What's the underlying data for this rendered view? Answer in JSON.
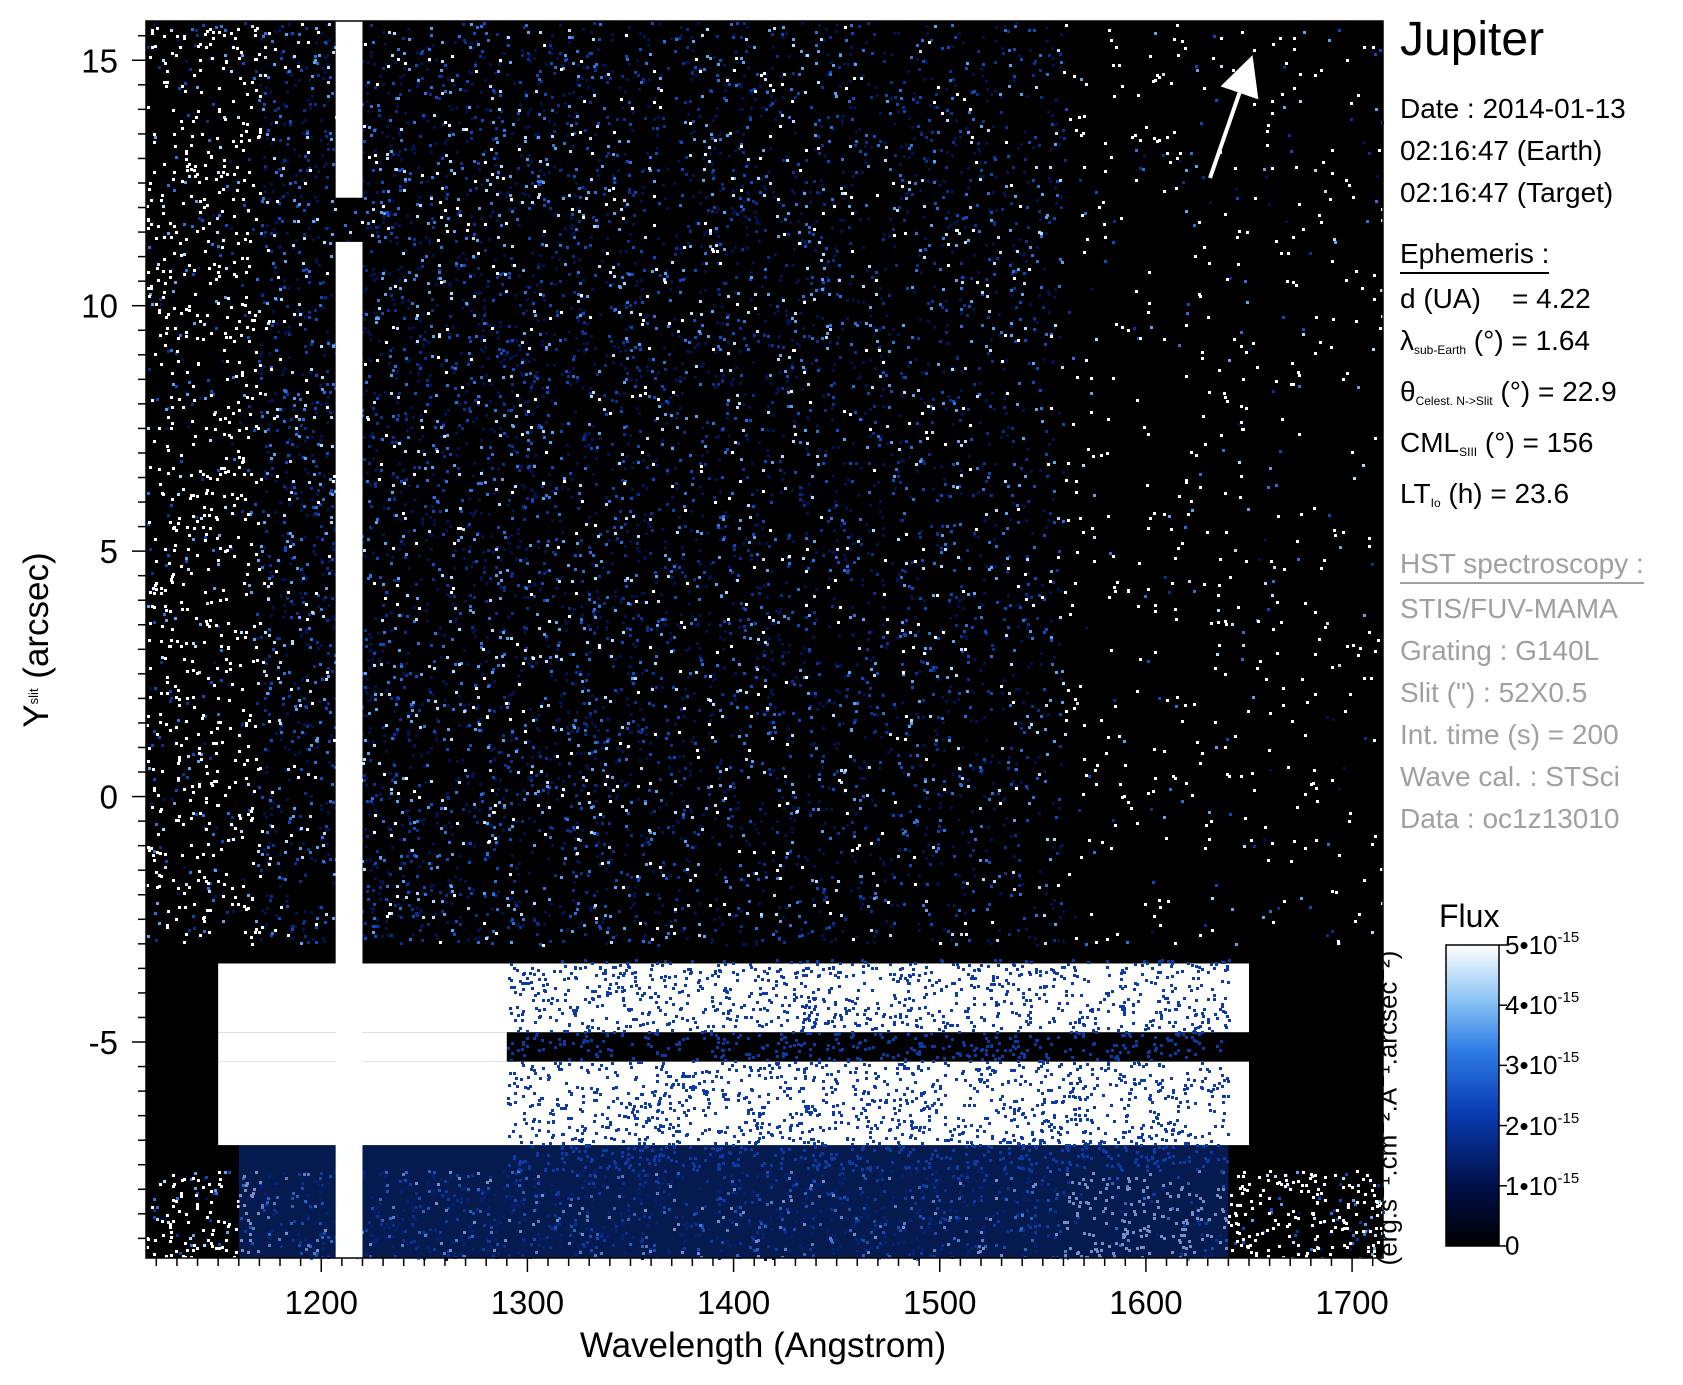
{
  "chart_data": {
    "type": "heatmap",
    "xlabel": "Wavelength (Angstrom)",
    "ylabel_main": "Y",
    "ylabel_sub": "slit",
    "ylabel_rest": " (arcsec)",
    "xlim": [
      1115,
      1715
    ],
    "ylim": [
      -9.4,
      15.8
    ],
    "x_ticks": [
      {
        "value": 1200,
        "label": "1200"
      },
      {
        "value": 1300,
        "label": "1300"
      },
      {
        "value": 1400,
        "label": "1400"
      },
      {
        "value": 1500,
        "label": "1500"
      },
      {
        "value": 1600,
        "label": "1600"
      },
      {
        "value": 1700,
        "label": "1700"
      }
    ],
    "y_ticks": [
      {
        "value": 15,
        "label": "15"
      },
      {
        "value": 10,
        "label": "10"
      },
      {
        "value": 5,
        "label": "5"
      },
      {
        "value": 0,
        "label": "0"
      },
      {
        "value": -5,
        "label": "-5"
      }
    ],
    "features": {
      "lyman_alpha_column_x": [
        1207,
        1220
      ],
      "lyman_alpha_gap_y": [
        11.3,
        12.2
      ],
      "bright_band_upper_y": [
        -4.8,
        -3.4
      ],
      "bright_band_lower_y": [
        -7.1,
        -5.4
      ],
      "bright_band_x": [
        1150,
        1650
      ]
    },
    "colorbar": {
      "title": "Flux",
      "label": "(erg.s⁻¹.cm⁻².A⁻¹.arcsec⁻²)",
      "range": [
        0,
        5e-15
      ],
      "ticks": [
        {
          "value": 5e-15,
          "base": "5•10",
          "exp": "-15"
        },
        {
          "value": 4e-15,
          "base": "4•10",
          "exp": "-15"
        },
        {
          "value": 3e-15,
          "base": "3•10",
          "exp": "-15"
        },
        {
          "value": 2e-15,
          "base": "2•10",
          "exp": "-15"
        },
        {
          "value": 1e-15,
          "base": "1•10",
          "exp": "-15"
        },
        {
          "value": 0,
          "base": "0",
          "exp": ""
        }
      ],
      "colors": [
        "#000000",
        "#00104a",
        "#0a3db5",
        "#2f7ce6",
        "#8ec5f5",
        "#ffffff"
      ]
    },
    "arrow_angle_deg": 22.9,
    "colors": {
      "background": "#000000",
      "saturated": "#ffffff"
    }
  },
  "info": {
    "target": "Jupiter",
    "date": "Date : 2014-01-13",
    "earth_time": "02:16:47 (Earth)",
    "target_time": "02:16:47 (Target)",
    "ephemeris_header": "Ephemeris :",
    "d_label": "d (UA)",
    "d_value": "= 4.22",
    "lambda_sym": "λ",
    "lambda_sub": "sub-Earth",
    "lambda_rest": " (°)  = 1.64",
    "theta_sym": "θ",
    "theta_sub": "Celest. N->Slit",
    "theta_rest": " (°) = 22.9",
    "cml_sym": "CML",
    "cml_sub": "SIII",
    "cml_rest": " (°) = 156",
    "lt_sym": "LT",
    "lt_sub": "Io",
    "lt_rest": " (h) = 23.6",
    "hst_header": "HST spectroscopy :",
    "instrument": "STIS/FUV-MAMA",
    "grating": "Grating : G140L",
    "slit": "Slit (\") : 52X0.5",
    "int_time": "Int. time (s) = 200",
    "wave_cal": "Wave cal. : STSci",
    "data_id": "Data : oc1z13010"
  }
}
